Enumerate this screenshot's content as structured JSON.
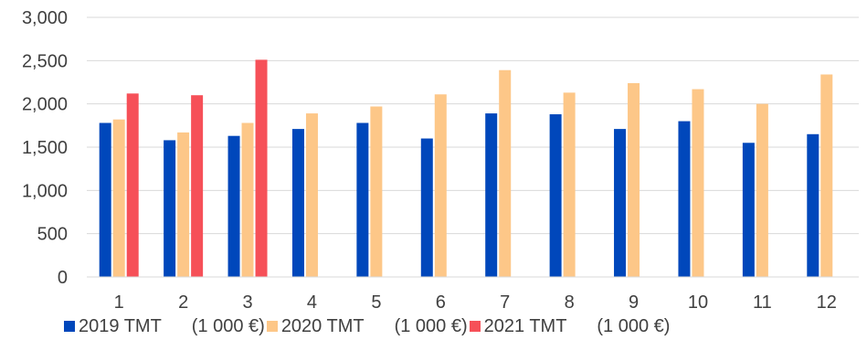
{
  "chart_data": {
    "type": "bar",
    "title": "",
    "xlabel": "",
    "ylabel": "",
    "ylim": [
      0,
      3000
    ],
    "y_ticks": [
      "0",
      "500",
      "1,000",
      "1,500",
      "2,000",
      "2,500",
      "3,000"
    ],
    "y_tick_values": [
      0,
      500,
      1000,
      1500,
      2000,
      2500,
      3000
    ],
    "grid": true,
    "legend_position": "bottom",
    "categories": [
      "1",
      "2",
      "3",
      "4",
      "5",
      "6",
      "7",
      "8",
      "9",
      "10",
      "11",
      "12"
    ],
    "series": [
      {
        "name": "2019 TMT      (1 000 €)",
        "color": "#0047BB",
        "values": [
          1780,
          1580,
          1630,
          1710,
          1780,
          1600,
          1890,
          1880,
          1710,
          1800,
          1550,
          1650
        ]
      },
      {
        "name": "2020 TMT      (1 000 €)",
        "color": "#FDC788",
        "values": [
          1820,
          1670,
          1780,
          1890,
          1970,
          2110,
          2390,
          2130,
          2240,
          2170,
          2000,
          2340
        ]
      },
      {
        "name": "2021 TMT      (1 000 €)",
        "color": "#F65058",
        "values": [
          2120,
          2100,
          2510,
          null,
          null,
          null,
          null,
          null,
          null,
          null,
          null,
          null
        ]
      }
    ]
  }
}
